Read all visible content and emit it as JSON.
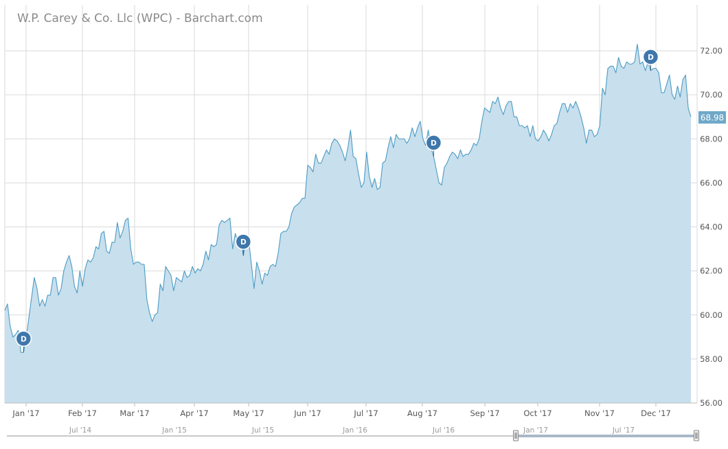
{
  "header": {
    "title": "W.P. Carey & Co. Llc (WPC) - Barchart.com"
  },
  "colors": {
    "line": "#4a9bc4",
    "fill": "#c8dfed",
    "grid": "#d9d9d9",
    "marker": "#3e77ab",
    "last_bg": "#6fa8c8",
    "text": "#555555",
    "nav_text": "#999999"
  },
  "chart_data": {
    "type": "area",
    "title": "W.P. Carey & Co. Llc (WPC) - Barchart.com",
    "y_ticks": [
      "56.00",
      "58.00",
      "60.00",
      "62.00",
      "64.00",
      "66.00",
      "68.00",
      "70.00",
      "72.00"
    ],
    "ylim": [
      56,
      73.3
    ],
    "x_ticks": [
      "Jan '17",
      "Feb '17",
      "Mar '17",
      "Apr '17",
      "May '17",
      "Jun '17",
      "Jul '17",
      "Aug '17",
      "Sep '17",
      "Oct '17",
      "Nov '17",
      "Dec '17"
    ],
    "last_value": "68.98",
    "navigator_labels": [
      "Jul '14",
      "Jan '15",
      "Jul '15",
      "Jan '16",
      "Jul '16",
      "Jan '17",
      "Jul '17"
    ],
    "dividend_markers": [
      {
        "label": "D",
        "point_index": 7
      },
      {
        "label": "D",
        "point_index": 89
      },
      {
        "label": "D",
        "point_index": 160
      },
      {
        "label": "D",
        "point_index": 241
      }
    ],
    "grid": true,
    "legend": "none",
    "series": [
      {
        "values": [
          60.2,
          60.5,
          59.5,
          59.0,
          59.1,
          59.3,
          58.3,
          58.3,
          59.0,
          59.9,
          60.8,
          61.7,
          61.2,
          60.4,
          60.7,
          60.4,
          60.9,
          60.9,
          61.7,
          61.7,
          60.9,
          61.2,
          62.0,
          62.4,
          62.7,
          62.2,
          61.3,
          61.0,
          62.0,
          61.3,
          62.1,
          62.5,
          62.4,
          62.6,
          63.1,
          63.0,
          63.7,
          63.8,
          62.9,
          62.8,
          63.3,
          63.3,
          64.2,
          63.5,
          63.8,
          64.3,
          64.4,
          63.0,
          62.3,
          62.4,
          62.4,
          62.3,
          62.3,
          60.7,
          60.1,
          59.7,
          60.0,
          60.1,
          61.4,
          61.1,
          62.2,
          62.0,
          61.8,
          61.1,
          61.7,
          61.6,
          61.5,
          62.0,
          61.7,
          61.8,
          62.2,
          61.9,
          62.1,
          62.0,
          62.3,
          62.9,
          62.5,
          63.2,
          63.1,
          63.2,
          64.1,
          64.3,
          64.2,
          64.3,
          64.4,
          63.0,
          63.7,
          63.3,
          63.5,
          62.7,
          63.4,
          63.4,
          62.3,
          61.2,
          62.4,
          62.0,
          61.4,
          61.9,
          61.8,
          62.2,
          62.3,
          62.2,
          62.8,
          63.7,
          63.8,
          63.8,
          64.0,
          64.6,
          64.9,
          65.0,
          65.1,
          65.3,
          65.3,
          66.8,
          66.7,
          66.5,
          67.3,
          66.9,
          66.9,
          67.2,
          67.5,
          67.3,
          67.8,
          68.0,
          67.9,
          67.7,
          67.4,
          67.0,
          67.6,
          68.4,
          67.2,
          67.1,
          66.4,
          65.8,
          66.0,
          67.4,
          66.3,
          65.8,
          66.2,
          65.7,
          65.8,
          66.9,
          67.0,
          67.6,
          68.1,
          67.6,
          68.2,
          68.0,
          68.0,
          68.0,
          67.8,
          68.0,
          68.5,
          68.1,
          68.5,
          68.8,
          68.0,
          67.7,
          68.4,
          67.6,
          67.2,
          66.6,
          66.0,
          65.9,
          66.7,
          66.9,
          67.2,
          67.4,
          67.3,
          67.1,
          67.5,
          67.2,
          67.3,
          67.3,
          67.5,
          67.8,
          67.7,
          68.0,
          68.8,
          69.4,
          69.3,
          69.2,
          69.7,
          69.6,
          69.9,
          69.4,
          69.1,
          69.5,
          69.7,
          69.7,
          69.0,
          69.0,
          68.6,
          68.6,
          68.5,
          68.6,
          68.1,
          68.6,
          68.0,
          67.9,
          68.1,
          68.4,
          68.2,
          67.9,
          68.2,
          68.6,
          68.7,
          69.2,
          69.6,
          69.6,
          69.2,
          69.6,
          69.4,
          69.7,
          69.4,
          69.0,
          68.5,
          67.8,
          68.4,
          68.4,
          68.1,
          68.2,
          68.6,
          70.3,
          70.0,
          71.2,
          71.3,
          71.3,
          71.0,
          71.7,
          71.3,
          71.2,
          71.5,
          71.4,
          71.4,
          71.5,
          72.3,
          71.4,
          71.5,
          71.1,
          71.5,
          71.1,
          71.2,
          71.2,
          71.0,
          70.1,
          70.1,
          70.5,
          70.9,
          70.0,
          69.8,
          70.4,
          69.9,
          70.7,
          70.9,
          69.4,
          69.0
        ]
      }
    ]
  }
}
